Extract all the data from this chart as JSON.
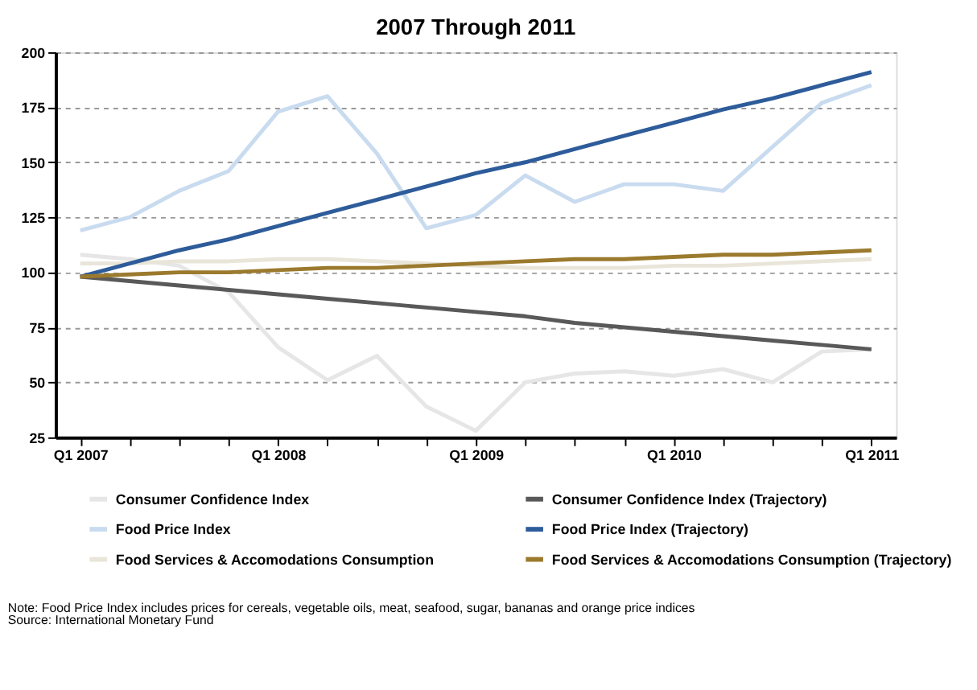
{
  "chart_data": {
    "type": "line",
    "title": "2007 Through 2011",
    "categories": [
      "Q1 2007",
      null,
      null,
      null,
      "Q1 2008",
      null,
      null,
      null,
      "Q1 2009",
      null,
      null,
      null,
      "Q1 2010",
      null,
      null,
      null,
      "Q1 2011"
    ],
    "series": [
      {
        "name": "Consumer Confidence Index",
        "color": "#e6e6e6",
        "values": [
          108,
          106,
          103,
          91,
          66,
          51,
          62,
          39,
          28,
          50,
          54,
          55,
          53,
          56,
          50,
          64,
          65
        ]
      },
      {
        "name": "Food Price Index",
        "color": "#c9dbef",
        "values": [
          119,
          125,
          137,
          146,
          173,
          180,
          154,
          120,
          126,
          144,
          132,
          140,
          140,
          137,
          157,
          177,
          185
        ]
      },
      {
        "name": "Food Services & Accomodations Consumption",
        "color": "#e9e5d9",
        "values": [
          104,
          104,
          105,
          105,
          106,
          106,
          105,
          104,
          103,
          102,
          102,
          102,
          103,
          103,
          104,
          105,
          106
        ]
      },
      {
        "name": "Consumer Confidence Index (Trajectory)",
        "color": "#595959",
        "values": [
          98,
          96,
          94,
          92,
          90,
          88,
          86,
          84,
          82,
          80,
          77,
          75,
          73,
          71,
          69,
          67,
          65
        ]
      },
      {
        "name": "Food Price Index (Trajectory)",
        "color": "#2e5c9a",
        "values": [
          98,
          104,
          110,
          115,
          121,
          127,
          133,
          139,
          145,
          150,
          156,
          162,
          168,
          174,
          179,
          185,
          191
        ]
      },
      {
        "name": "Food Services & Accomodations Consumption (Trajectory)",
        "color": "#9b7a2e",
        "values": [
          98,
          99,
          100,
          100,
          101,
          102,
          102,
          103,
          104,
          105,
          106,
          106,
          107,
          108,
          108,
          109,
          110
        ]
      }
    ],
    "ylim": [
      25,
      200
    ],
    "yticks": [
      25,
      50,
      75,
      100,
      125,
      150,
      175,
      200
    ],
    "grid": "y",
    "legend": "bottom",
    "marker": "none",
    "line_style": "solid",
    "annotations": [
      "Note: Food Price Index includes prices for cereals, vegetable oils, meat, seafood, sugar, bananas and orange price indices",
      "Source: International Monetary Fund"
    ]
  }
}
